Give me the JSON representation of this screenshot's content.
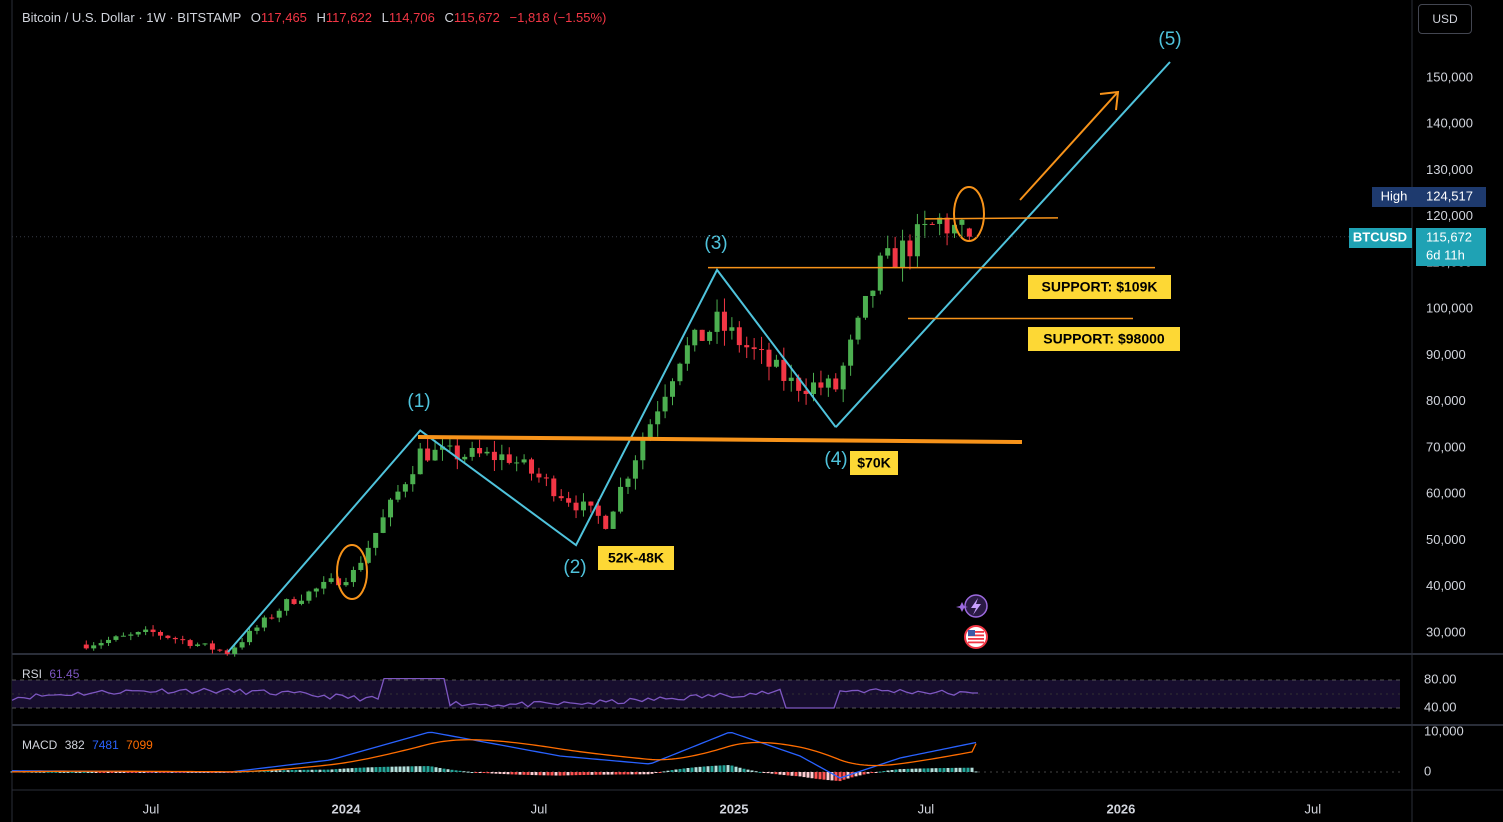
{
  "header": {
    "symbol": "Bitcoin / U.S. Dollar · 1W · BITSTAMP",
    "open_label": "O",
    "open": "117,465",
    "high_label": "H",
    "high": "117,622",
    "low_label": "L",
    "low": "114,706",
    "close_label": "C",
    "close": "115,672",
    "change": "−1,818 (−1.55%)"
  },
  "currency_button": "USD",
  "price_axis": {
    "ticks": [
      "150,000",
      "140,000",
      "130,000",
      "120,000",
      "110,000",
      "100,000",
      "90,000",
      "80,000",
      "70,000",
      "60,000",
      "50,000",
      "40,000",
      "30,000"
    ],
    "tick_values": [
      150000,
      140000,
      130000,
      120000,
      110000,
      100000,
      90000,
      80000,
      70000,
      60000,
      50000,
      40000,
      30000
    ],
    "high_tag": {
      "label": "High",
      "value": "124,517",
      "price": 124517
    },
    "last_tag": {
      "label": "BTCUSD",
      "value": "115,672",
      "countdown": "6d 11h",
      "price": 115672
    }
  },
  "time_axis": {
    "labels": [
      "Jul",
      "2024",
      "Jul",
      "2025",
      "Jul",
      "2026",
      "Jul"
    ],
    "dates": [
      "2023-07-01",
      "2024-01-01",
      "2024-07-01",
      "2025-01-01",
      "2025-07-01",
      "2026-01-01",
      "2026-07-01"
    ],
    "bold": [
      false,
      true,
      false,
      true,
      false,
      true,
      false
    ]
  },
  "colors": {
    "up": "#26a69a",
    "up_bright": "#4caf50",
    "down": "#f23645",
    "wave": "#4fc3dc",
    "orange": "#f7931a",
    "label_bg": "#fdd835"
  },
  "annotations": {
    "waves": [
      {
        "label": "(1)",
        "date": "2024-03-11",
        "price": 73800
      },
      {
        "label": "(2)",
        "date": "2024-08-05",
        "price": 49000
      },
      {
        "label": "(3)",
        "date": "2024-12-16",
        "price": 108500
      },
      {
        "label": "(4)",
        "date": "2025-04-07",
        "price": 74500
      },
      {
        "label": "(5)",
        "date": "2026-01-05",
        "price": 165000
      }
    ],
    "labels": [
      {
        "text": "52K-48K"
      },
      {
        "text": "$70K"
      },
      {
        "text": "SUPPORT: $109K"
      },
      {
        "text": "SUPPORT: $98000"
      }
    ]
  },
  "chart_data": {
    "type": "candlestick",
    "title": "Bitcoin / U.S. Dollar · 1W · BITSTAMP",
    "interval": "1W",
    "ylim": [
      25000,
      165000
    ],
    "ohlc_sample": [
      {
        "date": "2023-05-01",
        "close": 27500
      },
      {
        "date": "2023-07-01",
        "close": 30200
      },
      {
        "date": "2023-09-11",
        "close": 25800
      },
      {
        "date": "2023-11-06",
        "close": 36500
      },
      {
        "date": "2024-01-08",
        "close": 43000
      },
      {
        "date": "2024-03-11",
        "close": 69000
      },
      {
        "date": "2024-06-03",
        "close": 68000
      },
      {
        "date": "2024-08-05",
        "close": 58000
      },
      {
        "date": "2024-09-02",
        "close": 54000
      },
      {
        "date": "2024-11-11",
        "close": 90000
      },
      {
        "date": "2024-12-16",
        "close": 97000
      },
      {
        "date": "2025-02-24",
        "close": 84000
      },
      {
        "date": "2025-04-07",
        "close": 83000
      },
      {
        "date": "2025-05-19",
        "close": 109000
      },
      {
        "date": "2025-07-14",
        "close": 119000
      },
      {
        "date": "2025-08-11",
        "close": 115672
      }
    ],
    "last": {
      "open": 117465,
      "high": 117622,
      "low": 114706,
      "close": 115672,
      "change": -1818,
      "change_pct": -1.55
    },
    "all_time_high": 124517,
    "support_levels": [
      109000,
      98000,
      70000
    ],
    "rsi": {
      "name": "RSI",
      "value": 61.45,
      "ylim": [
        30,
        90
      ],
      "ticks": [
        "80.00",
        "40.00"
      ],
      "tick_values": [
        80,
        40
      ]
    },
    "macd": {
      "name": "MACD",
      "params": "382",
      "macd": 7481,
      "signal": 7099,
      "ticks": [
        "10,000",
        "0"
      ],
      "tick_values": [
        10000,
        0
      ]
    }
  }
}
